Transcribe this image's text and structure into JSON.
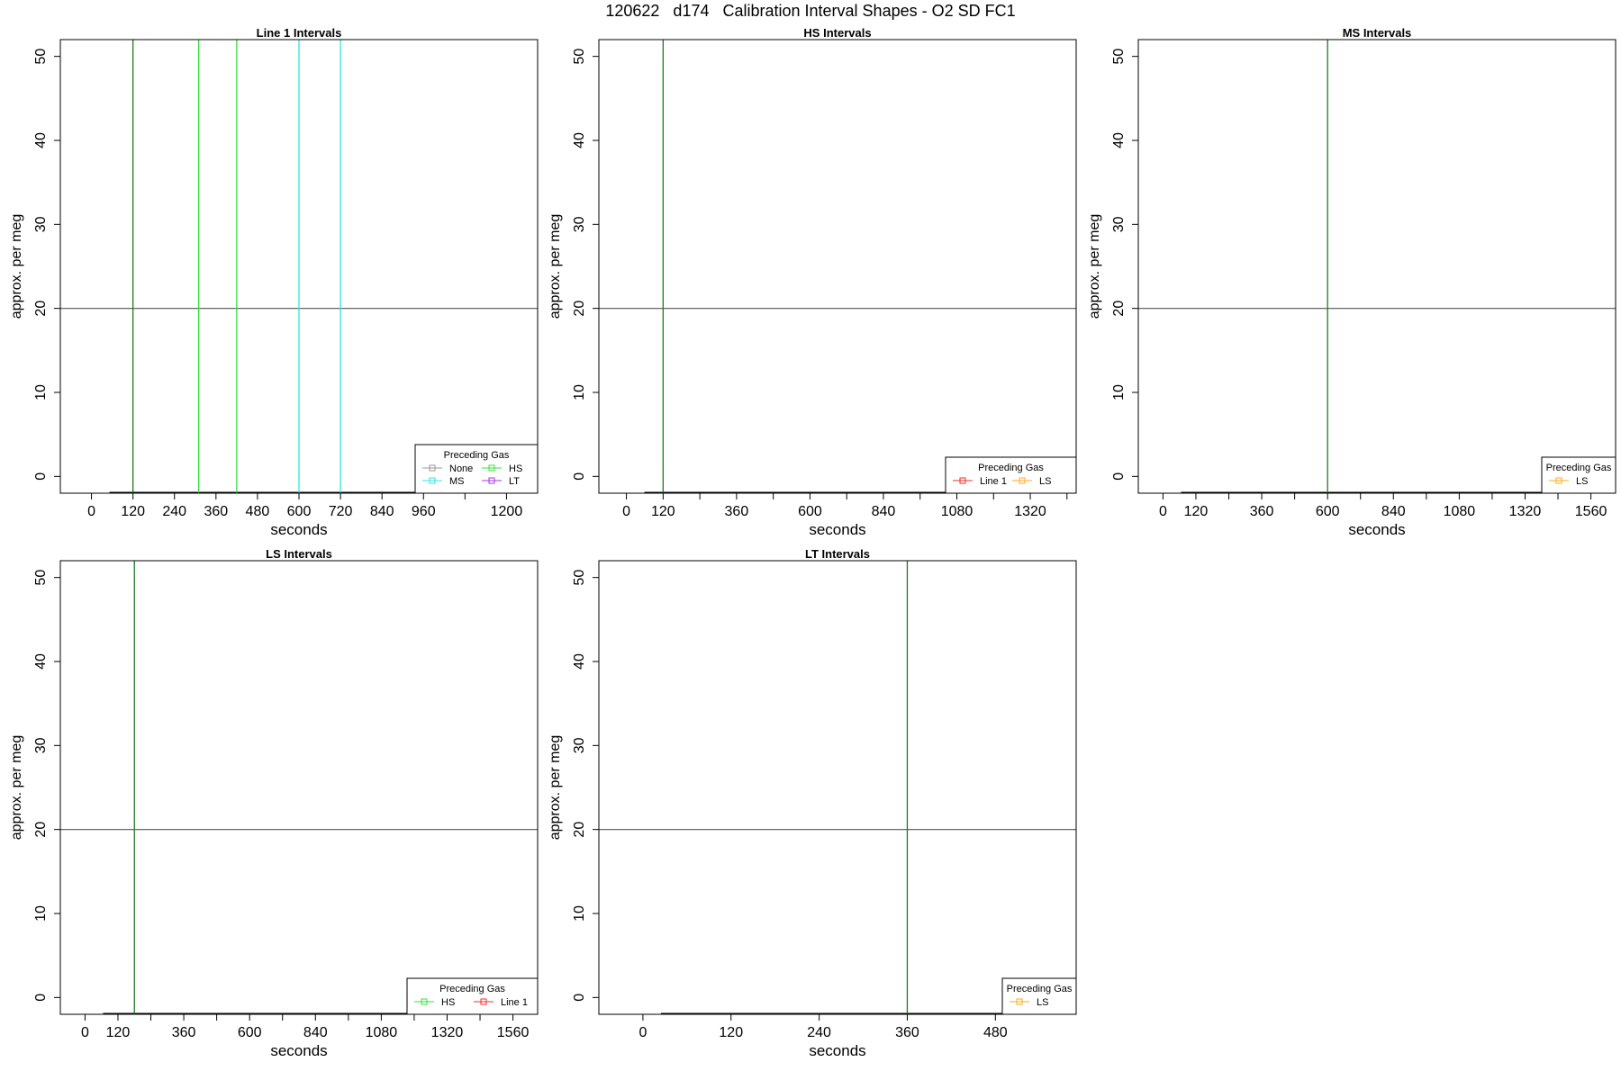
{
  "figure_title": "120622   d174   Calibration Interval Shapes - O2 SD FC1",
  "colors": {
    "Line 1": "#e8302b",
    "HS": "#33e03a",
    "MS": "#2ee5e5",
    "LS": "#ffaa1a",
    "LT": "#a733e0",
    "None": "#999999",
    "dark_green": "#1f7a1f",
    "axis": "#000000",
    "hline": "#555555"
  },
  "chart_data": [
    {
      "type": "line",
      "title": "Line 1 Intervals",
      "xlabel": "seconds",
      "ylabel": "approx. per meg",
      "xlim": [
        -90,
        1290
      ],
      "ylim": [
        -2,
        52
      ],
      "xticks": [
        0,
        120,
        240,
        360,
        480,
        600,
        720,
        840,
        960,
        1080,
        1200
      ],
      "xticklabels": [
        "0",
        "120",
        "240",
        "360",
        "480",
        "600",
        "720",
        "840",
        "960",
        "",
        "1200"
      ],
      "yticks": [
        0,
        10,
        20,
        30,
        40,
        50
      ],
      "hline": 20,
      "vlines": [
        {
          "x": 120,
          "color": "dark_green"
        },
        {
          "x": 310,
          "color": "HS"
        },
        {
          "x": 420,
          "color": "HS"
        },
        {
          "x": 600,
          "color": "MS"
        },
        {
          "x": 720,
          "color": "MS"
        }
      ],
      "legend": {
        "title": "Preceding Gas",
        "position": "bottom-right",
        "columns": 2,
        "entries": [
          {
            "label": "None",
            "color": "None"
          },
          {
            "label": "HS",
            "color": "HS"
          },
          {
            "label": "MS",
            "color": "MS"
          },
          {
            "label": "LT",
            "color": "LT"
          }
        ]
      }
    },
    {
      "type": "line",
      "title": "HS Intervals",
      "xlabel": "seconds",
      "ylabel": "approx. per meg",
      "xlim": [
        -90,
        1470
      ],
      "ylim": [
        -2,
        52
      ],
      "xticks": [
        0,
        120,
        240,
        360,
        480,
        600,
        720,
        840,
        960,
        1080,
        1200,
        1320,
        1440
      ],
      "xticklabels": [
        "0",
        "120",
        "",
        "360",
        "",
        "600",
        "",
        "840",
        "",
        "1080",
        "",
        "1320",
        ""
      ],
      "yticks": [
        0,
        10,
        20,
        30,
        40,
        50
      ],
      "hline": 20,
      "vlines": [
        {
          "x": 120,
          "color": "dark_green"
        }
      ],
      "legend": {
        "title": "Preceding Gas",
        "position": "bottom-right",
        "columns": 2,
        "entries": [
          {
            "label": "Line 1",
            "color": "Line 1"
          },
          {
            "label": "LS",
            "color": "LS"
          }
        ]
      }
    },
    {
      "type": "line",
      "title": "MS Intervals",
      "xlabel": "seconds",
      "ylabel": "approx. per meg",
      "xlim": [
        -90,
        1650
      ],
      "ylim": [
        -2,
        52
      ],
      "xticks": [
        0,
        120,
        240,
        360,
        480,
        600,
        720,
        840,
        960,
        1080,
        1200,
        1320,
        1440,
        1560
      ],
      "xticklabels": [
        "0",
        "120",
        "",
        "360",
        "",
        "600",
        "",
        "840",
        "",
        "1080",
        "",
        "1320",
        "",
        "1560"
      ],
      "yticks": [
        0,
        10,
        20,
        30,
        40,
        50
      ],
      "hline": 20,
      "vlines": [
        {
          "x": 600,
          "color": "dark_green"
        }
      ],
      "legend": {
        "title": "Preceding Gas",
        "position": "bottom-right",
        "columns": 1,
        "entries": [
          {
            "label": "LS",
            "color": "LS"
          }
        ]
      }
    },
    {
      "type": "line",
      "title": "LS Intervals",
      "xlabel": "seconds",
      "ylabel": "approx. per meg",
      "xlim": [
        -90,
        1650
      ],
      "ylim": [
        -2,
        52
      ],
      "xticks": [
        0,
        120,
        240,
        360,
        480,
        600,
        720,
        840,
        960,
        1080,
        1200,
        1320,
        1440,
        1560
      ],
      "xticklabels": [
        "0",
        "120",
        "",
        "360",
        "",
        "600",
        "",
        "840",
        "",
        "1080",
        "",
        "1320",
        "",
        "1560"
      ],
      "yticks": [
        0,
        10,
        20,
        30,
        40,
        50
      ],
      "hline": 20,
      "vlines": [
        {
          "x": 180,
          "color": "dark_green"
        }
      ],
      "legend": {
        "title": "Preceding Gas",
        "position": "bottom-right",
        "columns": 2,
        "entries": [
          {
            "label": "HS",
            "color": "HS"
          },
          {
            "label": "Line 1",
            "color": "Line 1"
          }
        ]
      }
    },
    {
      "type": "line",
      "title": "LT Intervals",
      "xlabel": "seconds",
      "ylabel": "approx. per meg",
      "xlim": [
        -60,
        590
      ],
      "ylim": [
        -2,
        52
      ],
      "xticks": [
        0,
        120,
        240,
        360,
        480
      ],
      "xticklabels": [
        "0",
        "120",
        "240",
        "360",
        "480"
      ],
      "yticks": [
        0,
        10,
        20,
        30,
        40,
        50
      ],
      "hline": 20,
      "vlines": [
        {
          "x": 360,
          "color": "dark_green"
        }
      ],
      "legend": {
        "title": "Preceding Gas",
        "position": "bottom-right",
        "columns": 1,
        "entries": [
          {
            "label": "LS",
            "color": "LS"
          }
        ]
      }
    }
  ]
}
